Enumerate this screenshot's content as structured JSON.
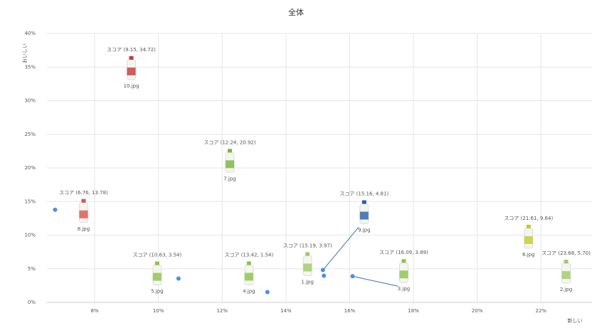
{
  "chart_data": {
    "type": "scatter",
    "title": "全体",
    "y_label": "おいしい",
    "x_label": "新しい",
    "xlim": [
      6.5,
      23.6
    ],
    "ylim": [
      0,
      40
    ],
    "xticks": [
      {
        "value": 8,
        "label": "8%"
      },
      {
        "value": 10,
        "label": "10%"
      },
      {
        "value": 12,
        "label": "12%"
      },
      {
        "value": 14,
        "label": "14%"
      },
      {
        "value": 16,
        "label": "16%"
      },
      {
        "value": 18,
        "label": "18%"
      },
      {
        "value": 20,
        "label": "20%"
      },
      {
        "value": 22,
        "label": "22%"
      }
    ],
    "yticks": [
      {
        "value": 0,
        "label": "0%"
      },
      {
        "value": 5,
        "label": "5%"
      },
      {
        "value": 10,
        "label": "10%"
      },
      {
        "value": 15,
        "label": "15%"
      },
      {
        "value": 20,
        "label": "20%"
      },
      {
        "value": 25,
        "label": "25%"
      },
      {
        "value": 30,
        "label": "30%"
      },
      {
        "value": 35,
        "label": "35%"
      },
      {
        "value": 40,
        "label": "40%"
      }
    ],
    "grid": true,
    "color": "#4a90e2",
    "x": [
      9.15,
      12.24,
      6.76,
      15.16,
      10.63,
      13.42,
      15.19,
      16.09,
      21.61,
      23.68
    ],
    "values": [
      34.72,
      20.92,
      13.78,
      4.81,
      3.54,
      1.54,
      3.97,
      3.89,
      9.64,
      5.7
    ],
    "value_labels": [
      "スコア (9.15, 34.72)",
      "スコア (12.24, 20.92)",
      "スコア (6.76, 13.78)",
      "スコア (15.16, 4.81)",
      "スコア (10.63, 3.54)",
      "スコア (13.42, 1.54)",
      "スコア (15.19, 3.97)",
      "スコア (16.09, 3.89)",
      "スコア (21.61, 9.64)",
      "スコア (23.68, 5.70)"
    ],
    "images": [
      "10.jpg",
      "7.jpg",
      "8.jpg",
      "9.jpg",
      "5.jpg",
      "4.jpg",
      "1.jpg",
      "3.jpg",
      "6.jpg",
      "2.jpg"
    ]
  }
}
